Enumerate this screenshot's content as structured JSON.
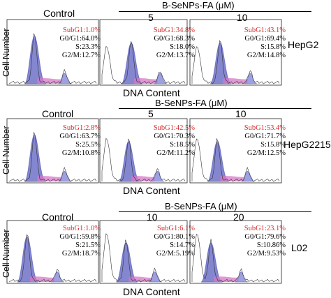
{
  "figure": {
    "x_axis_label": "DNA Content",
    "y_axis_label": "Cell Number",
    "rows": [
      {
        "cell_line": "HepG2",
        "treatment_label": "B-SeNPs-FA (μM)",
        "column_labels": [
          "Control",
          "5",
          "10"
        ],
        "panels": [
          {
            "subg1": "SubG1:1.0%",
            "g0g1": "G0/G1:64.0%",
            "s": "S:23.3%",
            "g2m": "G2/M:12.7%"
          },
          {
            "subg1": "SubG1:34.8%",
            "g0g1": "G0/G1:68.3%",
            "s": "S:18.0%",
            "g2m": "G2/M:13.7%"
          },
          {
            "subg1": "SubG1:43.1%",
            "g0g1": "G0/G1:69.4%",
            "s": "S:15.8%",
            "g2m": "G2/M:14.8%"
          }
        ]
      },
      {
        "cell_line": "HepG2215",
        "treatment_label": "B-SeNPs-FA (μM)",
        "column_labels": [
          "Control",
          "5",
          "10"
        ],
        "panels": [
          {
            "subg1": "SubG1:2.8%",
            "g0g1": "G0/G1:63.7%",
            "s": "S:25.5%",
            "g2m": "G2/M:10.8%"
          },
          {
            "subg1": "SubG1:42.5%",
            "g0g1": "G0/G1:70.3%",
            "s": "S:18.5%",
            "g2m": "G2/M:11.2%"
          },
          {
            "subg1": "SubG1:53.4%",
            "g0g1": "G0/G1:71.7%",
            "s": "S:15.8%",
            "g2m": "G2/M:12.5%"
          }
        ]
      },
      {
        "cell_line": "L02",
        "treatment_label": "B-SeNPs-FA (μM)",
        "column_labels": [
          "Control",
          "10",
          "20"
        ],
        "panels": [
          {
            "subg1": "SubG1:1.0%",
            "g0g1": "G0/G1:59.8%",
            "s": "S:21.5%",
            "g2m": "G2/M:18.7%"
          },
          {
            "subg1": "SubG1:6.1%",
            "g0g1": "G0/G1:80.1%",
            "s": "S:14.7%",
            "g2m": "G2/M:5.19%"
          },
          {
            "subg1": "SubG1:23.1%",
            "g0g1": "G0/G1:79.6%",
            "s": "S:10.86%",
            "g2m": "G2/M:9.53%"
          }
        ]
      }
    ],
    "colors": {
      "subg1_text": "#d42b2b",
      "g1_fill": "#6f72c8",
      "s_fill": "#d777c7",
      "g2_fill": "#8c8fdc",
      "trace": "#333333"
    }
  }
}
